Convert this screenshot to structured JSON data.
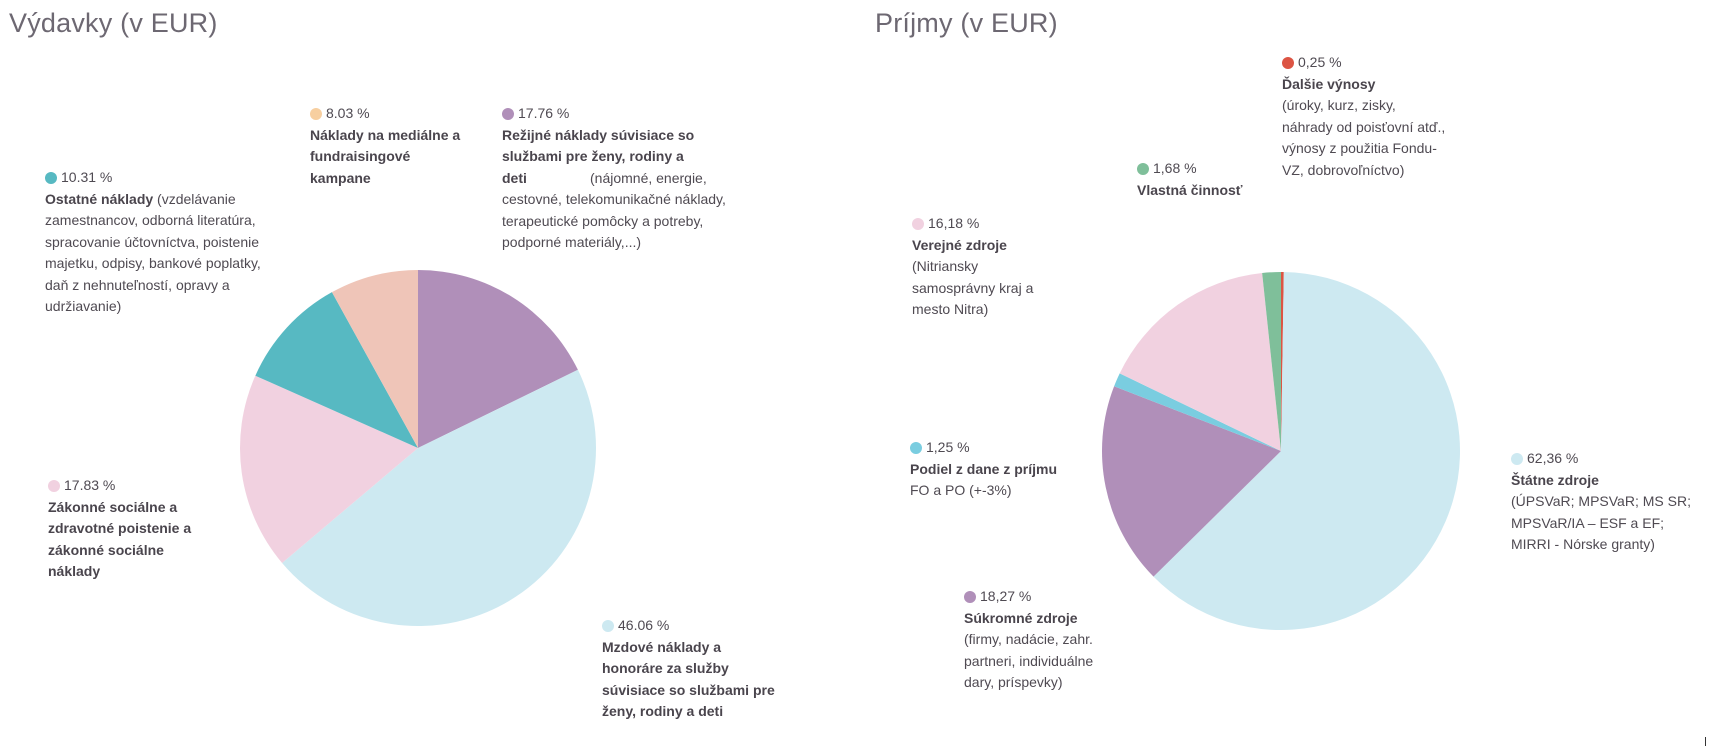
{
  "chart_data": [
    {
      "type": "pie",
      "title": "Výdavky (v EUR)",
      "slices": [
        {
          "percent": 17.76,
          "label": "17.76 %",
          "name": "Režijné náklady súvisiace so službami pre ženy, rodiny a deti",
          "detail": "(nájomné, energie, cestovné, telekomunikačné náklady, terapeutické pomôcky a potreby, podporné materiály,...)",
          "color": "#b08fb9"
        },
        {
          "percent": 46.06,
          "label": "46.06 %",
          "name": "Mzdové náklady a honoráre za služby súvisiace so službami pre ženy, rodiny a deti",
          "detail": "",
          "color": "#cde9f1"
        },
        {
          "percent": 17.83,
          "label": "17.83 %",
          "name": "Zákonné sociálne a zdravotné poistenie a zákonné sociálne náklady",
          "detail": "",
          "color": "#f1d1e0"
        },
        {
          "percent": 10.31,
          "label": "10.31 %",
          "name": "Ostatné náklady",
          "detail": "(vzdelávanie zamestnancov, odborná literatúra, spracovanie účtovníctva, poistenie majetku, odpisy, bankové poplatky, daň z nehnuteľností, opravy a udržiavanie)",
          "color": "#57b9c2"
        },
        {
          "percent": 8.03,
          "label": "8.03 %",
          "name": "Náklady na mediálne a fundraisingové kampane",
          "detail": "",
          "color": "#efc5b8"
        }
      ]
    },
    {
      "type": "pie",
      "title": "Príjmy (v EUR)",
      "slices": [
        {
          "percent": 0.25,
          "label": "0,25 %",
          "name": "Ďalšie výnosy",
          "detail": "(úroky, kurz, zisky, náhrady od poisťovní atď., výnosy z použitia Fondu-VZ, dobrovoľníctvo)",
          "color": "#dc5443"
        },
        {
          "percent": 62.36,
          "label": "62,36 %",
          "name": "Štátne zdroje",
          "detail": "(ÚPSVaR; MPSVaR; MS SR; MPSVaR/IA – ESF a EF; MIRRI - Nórske granty)",
          "color": "#cde9f1"
        },
        {
          "percent": 18.27,
          "label": "18,27 %",
          "name": "Súkromné zdroje",
          "detail": "(firmy, nadácie, zahr. partneri, individuálne dary, príspevky)",
          "color": "#b08fb9"
        },
        {
          "percent": 1.25,
          "label": "1,25 %",
          "name": "Podiel z dane z príjmu",
          "detail": "FO a PO (+-3%)",
          "color": "#7acde0"
        },
        {
          "percent": 16.18,
          "label": "16,18 %",
          "name": "Verejné zdroje",
          "detail": "(Nitriansky samosprávny kraj a mesto Nitra)",
          "color": "#f1d1e0"
        },
        {
          "percent": 1.68,
          "label": "1,68 %",
          "name": "Vlastná činnosť",
          "detail": "",
          "color": "#7fbf9a"
        }
      ]
    }
  ]
}
